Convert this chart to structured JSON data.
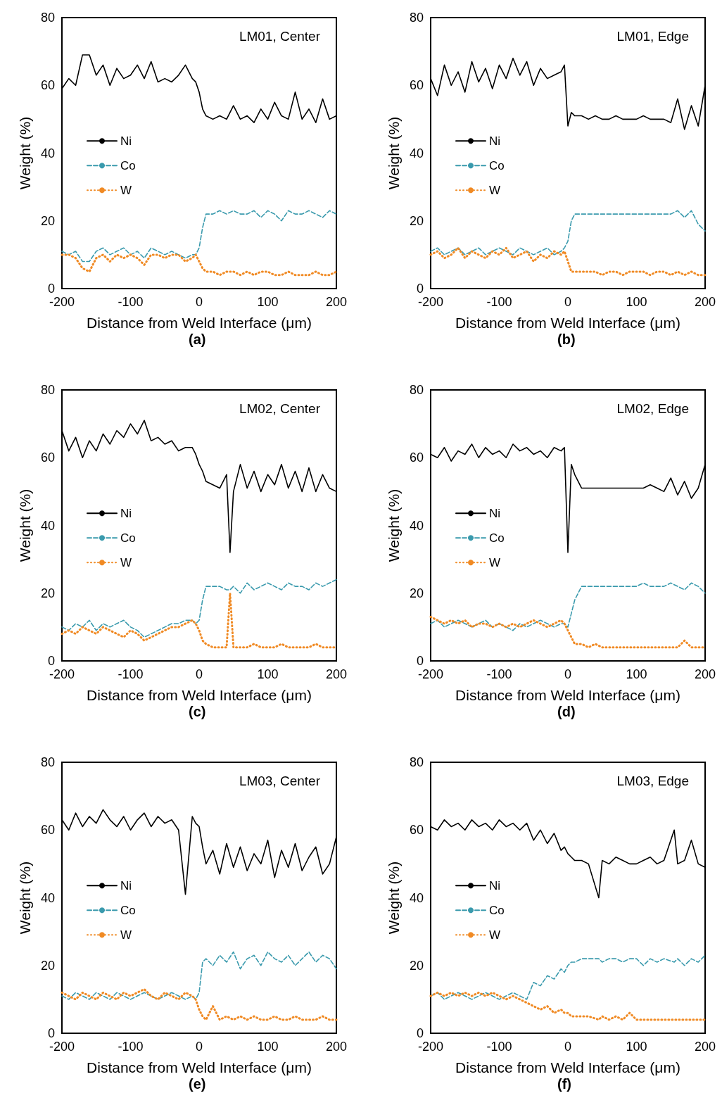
{
  "chart_data": [
    {
      "type": "line",
      "title": "LM01, Center",
      "xlabel": "Distance from Weld Interface (μm)",
      "ylabel": "Weight (%)",
      "annotations": [
        "(a)"
      ],
      "xlim": [
        -200,
        200
      ],
      "xticks": [
        -200,
        -100,
        0,
        100,
        200
      ],
      "ylim": [
        0,
        80
      ],
      "yticks": [
        0,
        20,
        40,
        60,
        80
      ],
      "legend": "left",
      "marker": "none",
      "x": [
        -200,
        -190,
        -180,
        -170,
        -160,
        -150,
        -140,
        -130,
        -120,
        -110,
        -100,
        -90,
        -80,
        -70,
        -60,
        -50,
        -40,
        -30,
        -20,
        -10,
        -5,
        0,
        5,
        10,
        20,
        30,
        40,
        50,
        60,
        70,
        80,
        90,
        100,
        110,
        120,
        130,
        140,
        150,
        160,
        170,
        180,
        190,
        200
      ],
      "series": [
        {
          "name": "Ni",
          "color": "#000000",
          "line_style": "solid",
          "values": [
            59,
            62,
            60,
            69,
            69,
            63,
            66,
            60,
            65,
            62,
            63,
            66,
            62,
            67,
            61,
            62,
            61,
            63,
            66,
            62,
            61,
            58,
            53,
            51,
            50,
            51,
            50,
            54,
            50,
            51,
            49,
            53,
            50,
            55,
            51,
            50,
            58,
            50,
            53,
            49,
            56,
            50,
            51
          ]
        },
        {
          "name": "Co",
          "color": "#3a9aad",
          "line_style": "dashed",
          "values": [
            11,
            10,
            11,
            8,
            8,
            11,
            12,
            10,
            11,
            12,
            10,
            11,
            9,
            12,
            11,
            10,
            11,
            10,
            9,
            10,
            10,
            12,
            18,
            22,
            22,
            23,
            22,
            23,
            22,
            22,
            23,
            21,
            23,
            22,
            20,
            23,
            22,
            22,
            23,
            22,
            21,
            23,
            22
          ]
        },
        {
          "name": "W",
          "color": "#f08a24",
          "line_style": "dotted",
          "values": [
            10,
            10,
            9,
            6,
            5,
            9,
            10,
            8,
            10,
            9,
            10,
            9,
            7,
            10,
            10,
            9,
            10,
            10,
            8,
            9,
            10,
            8,
            6,
            5,
            5,
            4,
            5,
            5,
            4,
            5,
            4,
            5,
            5,
            4,
            4,
            5,
            4,
            4,
            4,
            5,
            4,
            4,
            5
          ]
        }
      ]
    },
    {
      "type": "line",
      "title": "LM01, Edge",
      "xlabel": "Distance from Weld Interface (μm)",
      "ylabel": "Weight (%)",
      "annotations": [
        "(b)"
      ],
      "xlim": [
        -200,
        200
      ],
      "xticks": [
        -200,
        -100,
        0,
        100,
        200
      ],
      "ylim": [
        0,
        80
      ],
      "yticks": [
        0,
        20,
        40,
        60,
        80
      ],
      "legend": "left",
      "marker": "none",
      "x": [
        -200,
        -190,
        -180,
        -170,
        -160,
        -150,
        -140,
        -130,
        -120,
        -110,
        -100,
        -90,
        -80,
        -70,
        -60,
        -50,
        -40,
        -30,
        -20,
        -10,
        -5,
        0,
        5,
        10,
        20,
        30,
        40,
        50,
        60,
        70,
        80,
        90,
        100,
        110,
        120,
        130,
        140,
        150,
        160,
        170,
        180,
        190,
        200
      ],
      "series": [
        {
          "name": "Ni",
          "color": "#000000",
          "line_style": "solid",
          "values": [
            62,
            57,
            66,
            60,
            64,
            58,
            67,
            61,
            65,
            59,
            66,
            62,
            68,
            63,
            67,
            60,
            65,
            62,
            63,
            64,
            66,
            48,
            52,
            51,
            51,
            50,
            51,
            50,
            50,
            51,
            50,
            50,
            50,
            51,
            50,
            50,
            50,
            49,
            56,
            47,
            54,
            48,
            60
          ]
        },
        {
          "name": "Co",
          "color": "#3a9aad",
          "line_style": "dashed",
          "values": [
            11,
            12,
            10,
            11,
            12,
            10,
            11,
            12,
            10,
            11,
            12,
            11,
            10,
            12,
            11,
            10,
            11,
            12,
            10,
            11,
            12,
            14,
            20,
            22,
            22,
            22,
            22,
            22,
            22,
            22,
            22,
            22,
            22,
            22,
            22,
            22,
            22,
            22,
            23,
            21,
            23,
            19,
            17
          ]
        },
        {
          "name": "W",
          "color": "#f08a24",
          "line_style": "dotted",
          "values": [
            10,
            11,
            9,
            10,
            12,
            9,
            11,
            10,
            9,
            11,
            10,
            12,
            9,
            10,
            11,
            8,
            10,
            9,
            11,
            10,
            11,
            8,
            5,
            5,
            5,
            5,
            5,
            4,
            5,
            5,
            4,
            5,
            5,
            5,
            4,
            5,
            5,
            4,
            5,
            4,
            5,
            4,
            4
          ]
        }
      ]
    },
    {
      "type": "line",
      "title": "LM02, Center",
      "xlabel": "Distance from Weld Interface (μm)",
      "ylabel": "Weight (%)",
      "annotations": [
        "(c)"
      ],
      "xlim": [
        -200,
        200
      ],
      "xticks": [
        -200,
        -100,
        0,
        100,
        200
      ],
      "ylim": [
        0,
        80
      ],
      "yticks": [
        0,
        20,
        40,
        60,
        80
      ],
      "legend": "left",
      "marker": "none",
      "x": [
        -200,
        -190,
        -180,
        -170,
        -160,
        -150,
        -140,
        -130,
        -120,
        -110,
        -100,
        -90,
        -80,
        -70,
        -60,
        -50,
        -40,
        -30,
        -20,
        -10,
        -5,
        0,
        5,
        10,
        20,
        30,
        40,
        45,
        50,
        60,
        70,
        80,
        90,
        100,
        110,
        120,
        130,
        140,
        150,
        160,
        170,
        180,
        190,
        200
      ],
      "series": [
        {
          "name": "Ni",
          "color": "#000000",
          "line_style": "solid",
          "values": [
            68,
            62,
            66,
            60,
            65,
            62,
            67,
            64,
            68,
            66,
            70,
            67,
            71,
            65,
            66,
            64,
            65,
            62,
            63,
            63,
            61,
            58,
            56,
            53,
            52,
            51,
            55,
            32,
            50,
            58,
            51,
            56,
            50,
            55,
            52,
            58,
            51,
            56,
            50,
            57,
            50,
            55,
            51,
            50
          ]
        },
        {
          "name": "Co",
          "color": "#3a9aad",
          "line_style": "dashed",
          "values": [
            10,
            9,
            11,
            10,
            12,
            9,
            11,
            10,
            11,
            12,
            10,
            9,
            7,
            8,
            9,
            10,
            11,
            11,
            12,
            12,
            11,
            12,
            18,
            22,
            22,
            22,
            21,
            21,
            22,
            20,
            23,
            21,
            22,
            23,
            22,
            21,
            23,
            22,
            22,
            21,
            23,
            22,
            23,
            24
          ]
        },
        {
          "name": "W",
          "color": "#f08a24",
          "line_style": "dotted",
          "values": [
            8,
            9,
            8,
            10,
            9,
            8,
            10,
            9,
            8,
            7,
            9,
            8,
            6,
            7,
            8,
            9,
            10,
            10,
            11,
            12,
            11,
            9,
            6,
            5,
            4,
            4,
            4,
            20,
            4,
            4,
            4,
            5,
            4,
            4,
            4,
            5,
            4,
            4,
            4,
            4,
            5,
            4,
            4,
            4
          ]
        }
      ]
    },
    {
      "type": "line",
      "title": "LM02, Edge",
      "xlabel": "Distance from Weld Interface (μm)",
      "ylabel": "Weight (%)",
      "annotations": [
        "(d)"
      ],
      "xlim": [
        -200,
        200
      ],
      "xticks": [
        -200,
        -100,
        0,
        100,
        200
      ],
      "ylim": [
        0,
        80
      ],
      "yticks": [
        0,
        20,
        40,
        60,
        80
      ],
      "legend": "left",
      "marker": "none",
      "x": [
        -200,
        -190,
        -180,
        -170,
        -160,
        -150,
        -140,
        -130,
        -120,
        -110,
        -100,
        -90,
        -80,
        -70,
        -60,
        -50,
        -40,
        -30,
        -20,
        -10,
        -5,
        0,
        5,
        10,
        20,
        30,
        40,
        50,
        60,
        70,
        80,
        90,
        100,
        110,
        120,
        130,
        140,
        150,
        160,
        170,
        180,
        190,
        200
      ],
      "series": [
        {
          "name": "Ni",
          "color": "#000000",
          "line_style": "solid",
          "values": [
            61,
            60,
            63,
            59,
            62,
            61,
            64,
            60,
            63,
            61,
            62,
            60,
            64,
            62,
            63,
            61,
            62,
            60,
            63,
            62,
            63,
            32,
            58,
            55,
            51,
            51,
            51,
            51,
            51,
            51,
            51,
            51,
            51,
            51,
            52,
            51,
            50,
            54,
            49,
            53,
            48,
            51,
            58
          ]
        },
        {
          "name": "Co",
          "color": "#3a9aad",
          "line_style": "dashed",
          "values": [
            11,
            12,
            10,
            11,
            12,
            11,
            10,
            11,
            12,
            10,
            11,
            10,
            9,
            11,
            10,
            11,
            12,
            11,
            10,
            11,
            11,
            10,
            14,
            18,
            22,
            22,
            22,
            22,
            22,
            22,
            22,
            22,
            22,
            23,
            22,
            22,
            22,
            23,
            22,
            21,
            23,
            22,
            20
          ]
        },
        {
          "name": "W",
          "color": "#f08a24",
          "line_style": "dotted",
          "values": [
            13,
            12,
            11,
            12,
            11,
            12,
            10,
            11,
            11,
            10,
            11,
            10,
            11,
            10,
            11,
            12,
            11,
            10,
            11,
            12,
            11,
            9,
            7,
            5,
            5,
            4,
            5,
            4,
            4,
            4,
            4,
            4,
            4,
            4,
            4,
            4,
            4,
            4,
            4,
            6,
            4,
            4,
            4
          ]
        }
      ]
    },
    {
      "type": "line",
      "title": "LM03, Center",
      "xlabel": "Distance from Weld Interface (μm)",
      "ylabel": "Weight (%)",
      "annotations": [
        "(e)"
      ],
      "xlim": [
        -200,
        200
      ],
      "xticks": [
        -200,
        -100,
        0,
        100,
        200
      ],
      "ylim": [
        0,
        80
      ],
      "yticks": [
        0,
        20,
        40,
        60,
        80
      ],
      "legend": "left",
      "marker": "none",
      "x": [
        -200,
        -190,
        -180,
        -170,
        -160,
        -150,
        -140,
        -130,
        -120,
        -110,
        -100,
        -90,
        -80,
        -70,
        -60,
        -50,
        -40,
        -30,
        -20,
        -10,
        -5,
        0,
        5,
        10,
        20,
        30,
        40,
        50,
        60,
        70,
        80,
        90,
        100,
        110,
        120,
        130,
        140,
        150,
        160,
        170,
        180,
        190,
        200
      ],
      "series": [
        {
          "name": "Ni",
          "color": "#000000",
          "line_style": "solid",
          "values": [
            63,
            60,
            65,
            61,
            64,
            62,
            66,
            63,
            61,
            64,
            60,
            63,
            65,
            61,
            64,
            62,
            63,
            60,
            41,
            64,
            62,
            61,
            55,
            50,
            54,
            47,
            56,
            49,
            55,
            48,
            53,
            50,
            57,
            46,
            54,
            49,
            56,
            48,
            52,
            55,
            47,
            50,
            58
          ]
        },
        {
          "name": "Co",
          "color": "#3a9aad",
          "line_style": "dashed",
          "values": [
            11,
            10,
            12,
            11,
            10,
            12,
            11,
            10,
            12,
            11,
            10,
            11,
            12,
            11,
            10,
            11,
            12,
            11,
            10,
            11,
            10,
            12,
            21,
            22,
            20,
            23,
            21,
            24,
            19,
            22,
            23,
            20,
            24,
            22,
            21,
            23,
            20,
            22,
            24,
            21,
            23,
            22,
            19
          ]
        },
        {
          "name": "W",
          "color": "#f08a24",
          "line_style": "dotted",
          "values": [
            12,
            11,
            10,
            12,
            11,
            10,
            12,
            11,
            10,
            12,
            11,
            12,
            13,
            11,
            10,
            12,
            11,
            10,
            12,
            11,
            10,
            7,
            5,
            4,
            8,
            4,
            5,
            4,
            5,
            4,
            5,
            4,
            4,
            5,
            4,
            4,
            5,
            4,
            4,
            4,
            5,
            4,
            4
          ]
        }
      ]
    },
    {
      "type": "line",
      "title": "LM03, Edge",
      "xlabel": "Distance from Weld Interface (μm)",
      "ylabel": "Weight (%)",
      "annotations": [
        "(f)"
      ],
      "xlim": [
        -200,
        200
      ],
      "xticks": [
        -200,
        -100,
        0,
        100,
        200
      ],
      "ylim": [
        0,
        80
      ],
      "yticks": [
        0,
        20,
        40,
        60,
        80
      ],
      "legend": "left",
      "marker": "none",
      "x": [
        -200,
        -190,
        -180,
        -170,
        -160,
        -150,
        -140,
        -130,
        -120,
        -110,
        -100,
        -90,
        -80,
        -70,
        -60,
        -50,
        -40,
        -30,
        -20,
        -10,
        -5,
        0,
        5,
        10,
        20,
        30,
        45,
        50,
        60,
        70,
        80,
        90,
        100,
        110,
        120,
        130,
        140,
        155,
        160,
        170,
        180,
        190,
        200
      ],
      "series": [
        {
          "name": "Ni",
          "color": "#000000",
          "line_style": "solid",
          "values": [
            61,
            60,
            63,
            61,
            62,
            60,
            63,
            61,
            62,
            60,
            63,
            61,
            62,
            60,
            62,
            57,
            60,
            56,
            59,
            54,
            55,
            53,
            52,
            51,
            51,
            50,
            40,
            51,
            50,
            52,
            51,
            50,
            50,
            51,
            52,
            50,
            51,
            60,
            50,
            51,
            57,
            50,
            49
          ]
        },
        {
          "name": "Co",
          "color": "#3a9aad",
          "line_style": "dashed",
          "values": [
            11,
            12,
            10,
            11,
            12,
            11,
            10,
            11,
            12,
            11,
            10,
            11,
            12,
            11,
            10,
            15,
            14,
            17,
            16,
            19,
            18,
            20,
            21,
            21,
            22,
            22,
            22,
            21,
            22,
            22,
            21,
            22,
            22,
            20,
            22,
            21,
            22,
            21,
            22,
            20,
            22,
            21,
            23
          ]
        },
        {
          "name": "W",
          "color": "#f08a24",
          "line_style": "dotted",
          "values": [
            11,
            12,
            11,
            12,
            11,
            12,
            11,
            12,
            11,
            12,
            11,
            10,
            11,
            10,
            9,
            8,
            7,
            8,
            6,
            7,
            6,
            6,
            5,
            5,
            5,
            5,
            4,
            5,
            4,
            5,
            4,
            6,
            4,
            4,
            4,
            4,
            4,
            4,
            4,
            4,
            4,
            4,
            4
          ]
        }
      ]
    }
  ]
}
